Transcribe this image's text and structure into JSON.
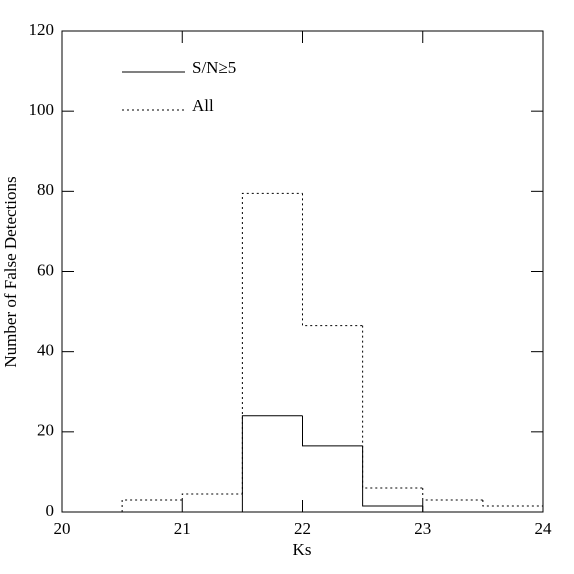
{
  "chart_data": {
    "type": "histogram",
    "xlabel": "Ks",
    "ylabel": "Number of False Detections",
    "bins": [
      20,
      20.5,
      21,
      21.5,
      22,
      22.5,
      23,
      23.5,
      24
    ],
    "series": [
      {
        "name": "S/N≥5",
        "color": "#000000",
        "linestyle": "solid",
        "values": [
          0,
          0,
          0,
          24,
          16.5,
          1.5,
          0,
          0
        ]
      },
      {
        "name": "All",
        "color": "#000000",
        "linestyle": "dotted",
        "values": [
          0,
          3,
          4.5,
          79.5,
          46.5,
          6,
          3,
          1.5
        ]
      }
    ],
    "xlim": [
      20,
      24
    ],
    "xticks": [
      20,
      21,
      22,
      23,
      24
    ],
    "ylim": [
      0,
      120
    ],
    "yticks": [
      0,
      20,
      40,
      60,
      80,
      100,
      120
    ],
    "legend": "upper left"
  }
}
